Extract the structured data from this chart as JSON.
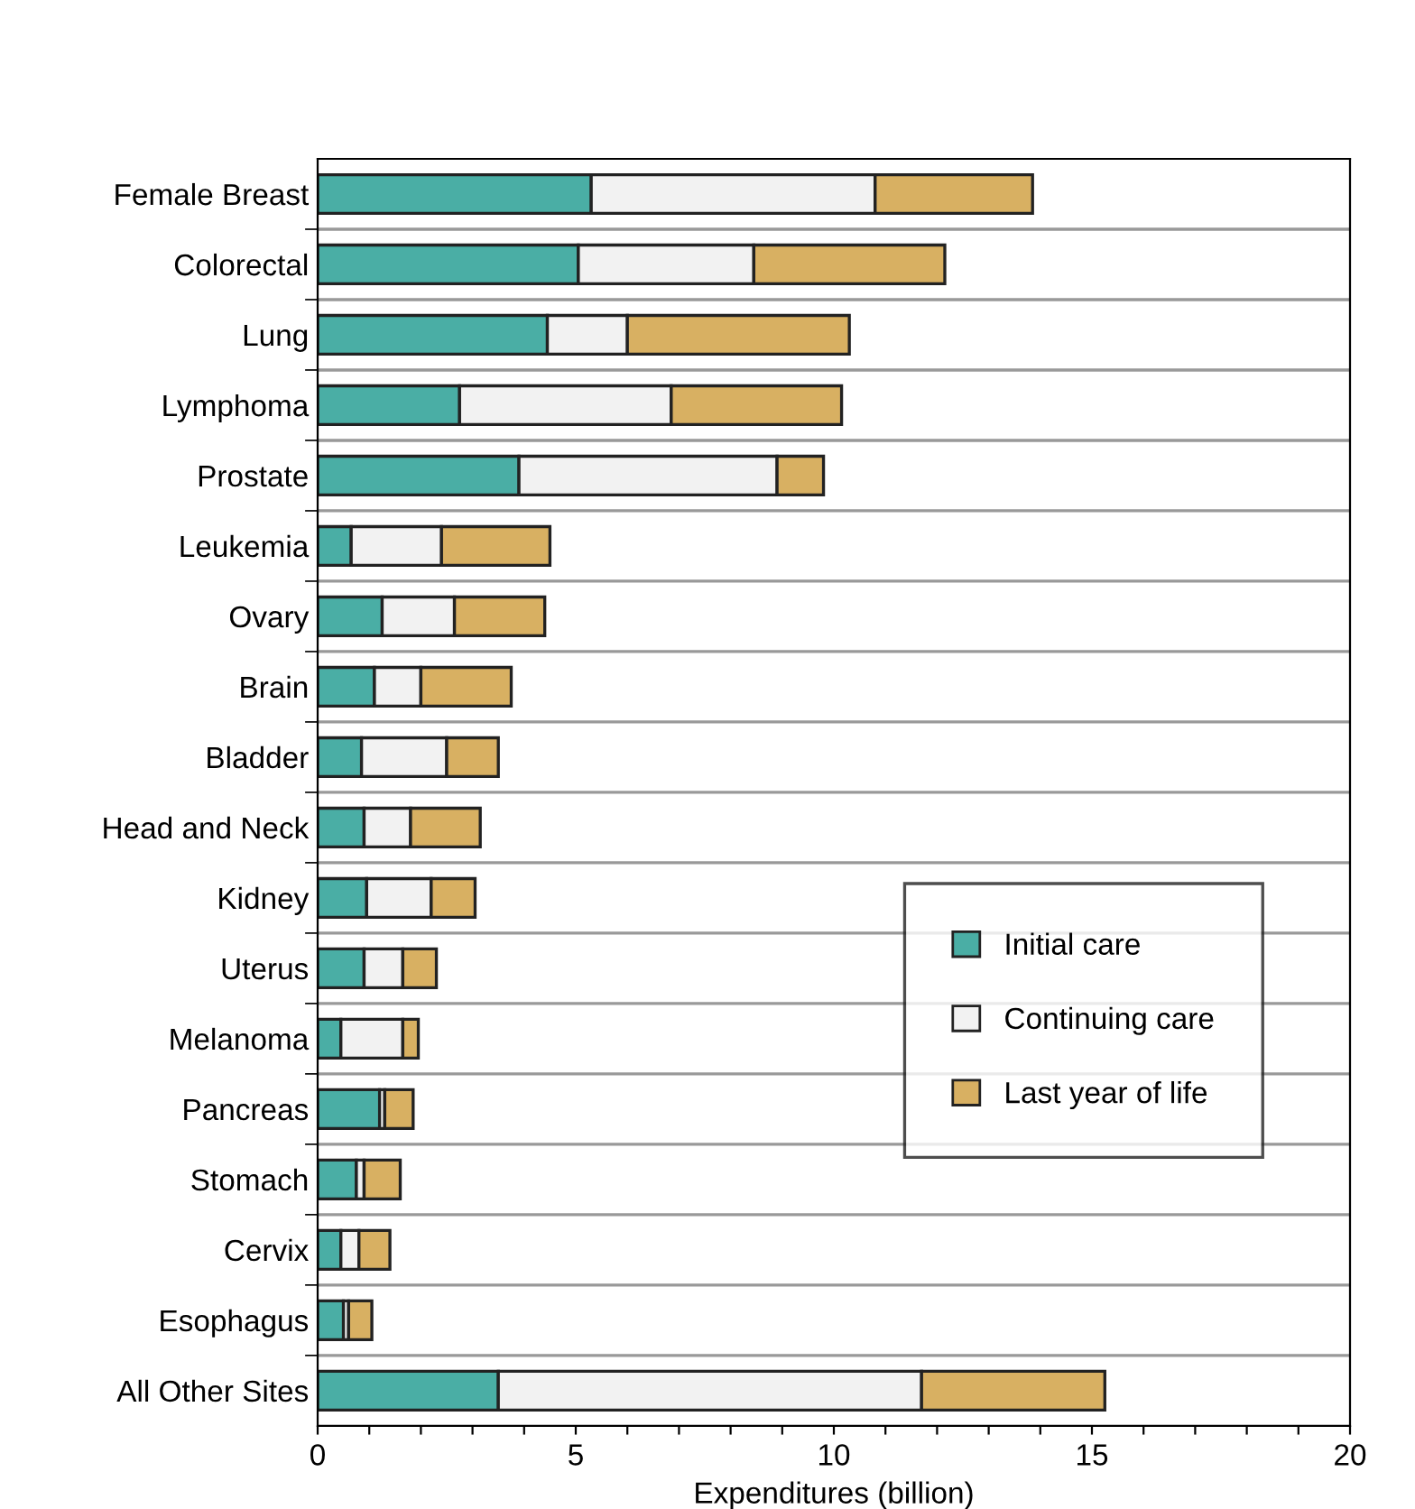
{
  "chart_data": {
    "type": "bar",
    "orientation": "horizontal",
    "stacked": true,
    "xlabel": "Expenditures (billion)",
    "categories": [
      "Female Breast",
      "Colorectal",
      "Lung",
      "Lymphoma",
      "Prostate",
      "Leukemia",
      "Ovary",
      "Brain",
      "Bladder",
      "Head and Neck",
      "Kidney",
      "Uterus",
      "Melanoma",
      "Pancreas",
      "Stomach",
      "Cervix",
      "Esophagus",
      "All Other Sites"
    ],
    "series": [
      {
        "name": "Initial care",
        "color": "#4aaea5",
        "values": [
          5.3,
          5.05,
          4.45,
          2.75,
          3.9,
          0.65,
          1.25,
          1.1,
          0.85,
          0.9,
          0.95,
          0.9,
          0.45,
          1.2,
          0.75,
          0.45,
          0.5,
          3.5
        ]
      },
      {
        "name": "Continuing care",
        "color": "#f2f2f2",
        "values": [
          5.5,
          3.4,
          1.55,
          4.1,
          5.0,
          1.75,
          1.4,
          0.9,
          1.65,
          0.9,
          1.25,
          0.75,
          1.2,
          0.1,
          0.15,
          0.35,
          0.1,
          8.2
        ]
      },
      {
        "name": "Last year of life",
        "color": "#d8b062",
        "values": [
          3.05,
          3.7,
          4.3,
          3.3,
          0.9,
          2.1,
          1.75,
          1.75,
          1.0,
          1.35,
          0.85,
          0.65,
          0.3,
          0.55,
          0.7,
          0.6,
          0.45,
          3.55
        ]
      }
    ],
    "xlim": [
      0,
      20
    ],
    "xticks": [
      0,
      {
        "value": 1,
        "label": null
      },
      {
        "value": 2,
        "label": null
      },
      {
        "value": 3,
        "label": null
      },
      {
        "value": 4,
        "label": null
      },
      5,
      {
        "value": 6,
        "label": null
      },
      {
        "value": 7,
        "label": null
      },
      {
        "value": 8,
        "label": null
      },
      {
        "value": 9,
        "label": null
      },
      10,
      {
        "value": 11,
        "label": null
      },
      {
        "value": 12,
        "label": null
      },
      {
        "value": 13,
        "label": null
      },
      {
        "value": 14,
        "label": null
      },
      15,
      {
        "value": 16,
        "label": null
      },
      {
        "value": 17,
        "label": null
      },
      {
        "value": 18,
        "label": null
      },
      {
        "value": 19,
        "label": null
      },
      20
    ],
    "grid": "y",
    "legend": "bottom right"
  }
}
